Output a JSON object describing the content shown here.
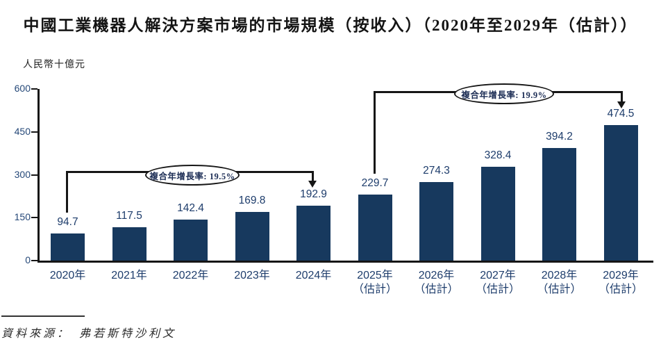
{
  "title": "中國工業機器人解決方案市場的市場規模（按收入）（2020年至2029年（估計））",
  "unit_label": "人民幣十億元",
  "source": "資料來源：　弗若斯特沙利文",
  "annotations": [
    {
      "label": "複合年增長率: 19.5%"
    },
    {
      "label": "複合年增長率: 19.9%"
    }
  ],
  "colors": {
    "bar": "#17395E",
    "axis": "#161616",
    "value_label": "#1D3C6B",
    "tick_label": "#254878"
  },
  "chart_data": {
    "type": "bar",
    "title": "中國工業機器人解決方案市場的市場規模（按收入）（2020年至2029年（估計））",
    "ylabel": "人民幣十億元",
    "xlabel": "",
    "ylim": [
      0,
      600
    ],
    "yticks": [
      0,
      150,
      300,
      450,
      600
    ],
    "grid": false,
    "legend": "none",
    "categories": [
      {
        "year": "2020年",
        "note": ""
      },
      {
        "year": "2021年",
        "note": ""
      },
      {
        "year": "2022年",
        "note": ""
      },
      {
        "year": "2023年",
        "note": ""
      },
      {
        "year": "2024年",
        "note": ""
      },
      {
        "year": "2025年",
        "note": "（估計）"
      },
      {
        "year": "2026年",
        "note": "（估計）"
      },
      {
        "year": "2027年",
        "note": "（估計）"
      },
      {
        "year": "2028年",
        "note": "（估計）"
      },
      {
        "year": "2029年",
        "note": "（估計）"
      }
    ],
    "values": [
      94.7,
      117.5,
      142.4,
      169.8,
      192.9,
      229.7,
      274.3,
      328.4,
      394.2,
      474.5
    ],
    "annotations": [
      {
        "label": "複合年增長率: 19.5%",
        "span": "2020年–2024年"
      },
      {
        "label": "複合年增長率: 19.9%",
        "span": "2025年–2029年"
      }
    ]
  }
}
